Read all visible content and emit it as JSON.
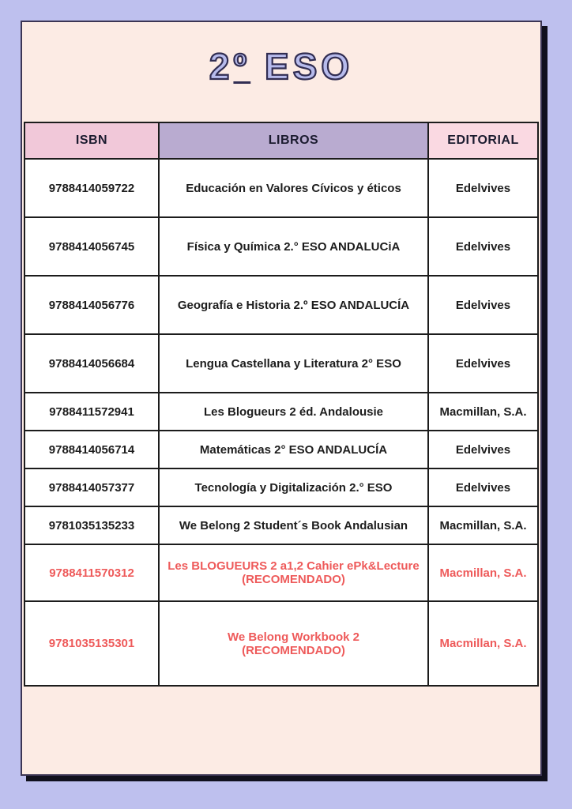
{
  "page": {
    "title_prefix": "2",
    "title_ordinal": "º",
    "title_suffix": " ESO"
  },
  "table": {
    "headers": [
      "ISBN",
      "LIBROS",
      "EDITORIAL"
    ],
    "rows": [
      {
        "isbn": "9788414059722",
        "libro": "Educación en Valores Cívicos y éticos",
        "editorial": "Edelvives",
        "recommended": false
      },
      {
        "isbn": "9788414056745",
        "libro": "Física y Química 2.° ESO ANDALUCiA",
        "editorial": "Edelvives",
        "recommended": false
      },
      {
        "isbn": "9788414056776",
        "libro": "Geografía e Historia 2.º ESO ANDALUCÍA",
        "editorial": "Edelvives",
        "recommended": false
      },
      {
        "isbn": "9788414056684",
        "libro": "Lengua Castellana y Literatura 2° ESO",
        "editorial": "Edelvives",
        "recommended": false
      },
      {
        "isbn": "9788411572941",
        "libro": "Les Blogueurs 2 éd. Andalousie",
        "editorial": "Macmillan, S.A.",
        "recommended": false
      },
      {
        "isbn": "9788414056714",
        "libro": "Matemáticas 2° ESO ANDALUCÍA",
        "editorial": "Edelvives",
        "recommended": false
      },
      {
        "isbn": "9788414057377",
        "libro": "Tecnología y Digitalización 2.° ESO",
        "editorial": "Edelvives",
        "recommended": false
      },
      {
        "isbn": "9781035135233",
        "libro": "We Belong 2 Student´s Book Andalusian",
        "editorial": "Macmillan, S.A.",
        "recommended": false
      },
      {
        "isbn": "9788411570312",
        "libro": "Les BLOGUEURS 2 a1,2 Cahier ePk&Lecture\n(RECOMENDADO)",
        "editorial": "Macmillan, S.A.",
        "recommended": true
      },
      {
        "isbn": "9781035135301",
        "libro": "We Belong Workbook 2\n(RECOMENDADO)",
        "editorial": "Macmillan, S.A.",
        "recommended": true
      }
    ]
  },
  "colors": {
    "outer_background": "#bec0ee",
    "page_background": "#fcebe4",
    "header_isbn": "#f1c8d9",
    "header_libros": "#b9abd0",
    "header_editorial": "#fad9e2",
    "recommended_text": "#ee5a5a",
    "title_fill": "#b7bbec",
    "title_outline": "#312d52",
    "table_border": "#1c1c1c"
  }
}
